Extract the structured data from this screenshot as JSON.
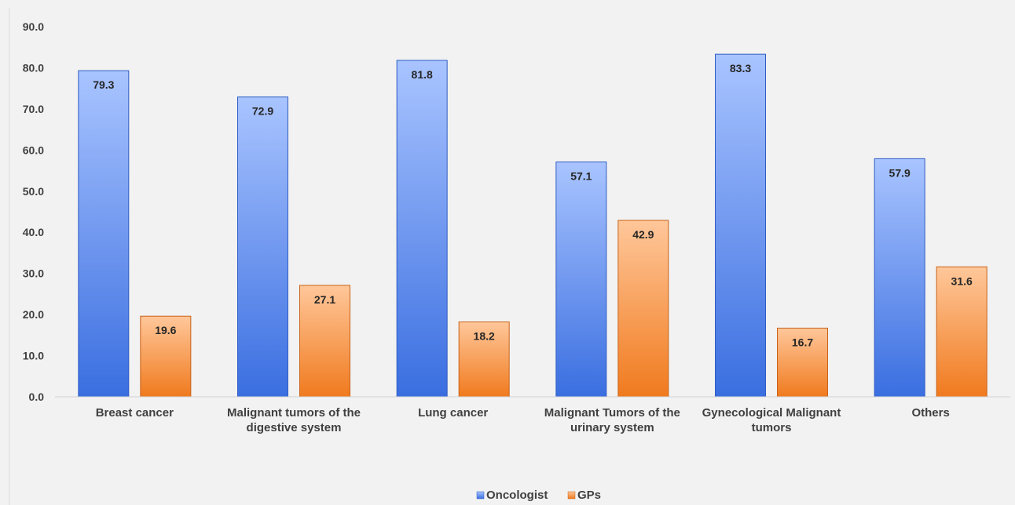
{
  "chart_data": {
    "type": "bar",
    "title": "",
    "xlabel": "",
    "ylabel": "",
    "ylim": [
      0,
      90
    ],
    "yticks": [
      "0.0",
      "10.0",
      "20.0",
      "30.0",
      "40.0",
      "50.0",
      "60.0",
      "70.0",
      "80.0",
      "90.0"
    ],
    "grid": false,
    "legend_position": "bottom",
    "categories": [
      [
        "Breast cancer"
      ],
      [
        "Malignant tumors of the",
        "digestive system"
      ],
      [
        "Lung cancer"
      ],
      [
        "Malignant Tumors of the",
        "urinary system"
      ],
      [
        "Gynecological Malignant",
        "tumors"
      ],
      [
        "Others"
      ]
    ],
    "series": [
      {
        "name": "Oncologist",
        "values": [
          79.3,
          72.9,
          81.8,
          57.1,
          83.3,
          57.9
        ],
        "labels": [
          "79.3",
          "72.9",
          "81.8",
          "57.1",
          "83.3",
          "57.9"
        ],
        "color_top": "#a9c4ff",
        "color_bottom": "#3a6ee0",
        "stroke": "#2f5cc4"
      },
      {
        "name": "GPs",
        "values": [
          19.6,
          27.1,
          18.2,
          42.9,
          16.7,
          31.6
        ],
        "labels": [
          "19.6",
          "27.1",
          "18.2",
          "42.9",
          "16.7",
          "31.6"
        ],
        "color_top": "#ffc79a",
        "color_bottom": "#f07a1e",
        "stroke": "#c8621a"
      }
    ],
    "colors": {
      "background": "#f2f2f2",
      "axis": "#d0d0d0"
    }
  }
}
